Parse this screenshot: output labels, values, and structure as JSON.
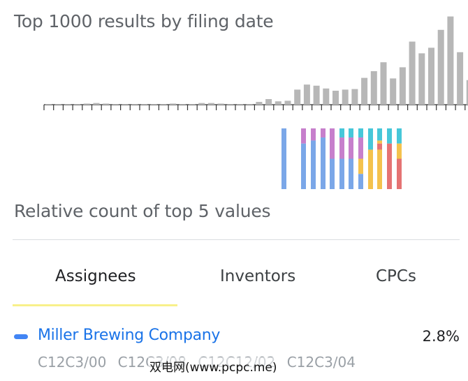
{
  "filing_chart": {
    "title": "Top 1000 results by filing date",
    "chart_data": {
      "type": "bar",
      "title": "Top 1000 results by filing date",
      "relative_heights": [
        0.5,
        0.5,
        0.5,
        0.5,
        1,
        1.5,
        1,
        0.5,
        0.5,
        0.5,
        0.5,
        0.5,
        0.5,
        1,
        0.5,
        0.5,
        1.5,
        1.5,
        1,
        0.5,
        0.5,
        0.5,
        2.5,
        5,
        3,
        3.5,
        13.5,
        18,
        17,
        14.5,
        12.5,
        13.5,
        14,
        24,
        30,
        38,
        23.5,
        33.5,
        56.5,
        46,
        51,
        67,
        79,
        47,
        22
      ],
      "bar_color": "#b7b7b7",
      "grid": false
    }
  },
  "distribution_chart": {
    "colors": {
      "blue": "#7ba7e8",
      "purple": "#c77fcc",
      "teal": "#47c7d9",
      "yellow": "#f4c24d",
      "red": "#e57373"
    },
    "columns": [
      [
        {
          "c": "blue",
          "v": 100
        }
      ],
      [
        {
          "c": "purple",
          "v": 25
        },
        {
          "c": "blue",
          "v": 75
        }
      ],
      [
        {
          "c": "purple",
          "v": 20
        },
        {
          "c": "blue",
          "v": 80
        }
      ],
      [
        {
          "c": "purple",
          "v": 15
        },
        {
          "c": "blue",
          "v": 85
        }
      ],
      [
        {
          "c": "purple",
          "v": 50
        },
        {
          "c": "blue",
          "v": 50
        }
      ],
      [
        {
          "c": "teal",
          "v": 15
        },
        {
          "c": "purple",
          "v": 35
        },
        {
          "c": "blue",
          "v": 50
        }
      ],
      [
        {
          "c": "teal",
          "v": 15
        },
        {
          "c": "purple",
          "v": 35
        },
        {
          "c": "blue",
          "v": 50
        }
      ],
      [
        {
          "c": "teal",
          "v": 15
        },
        {
          "c": "purple",
          "v": 35
        },
        {
          "c": "yellow",
          "v": 25
        },
        {
          "c": "blue",
          "v": 25
        }
      ],
      [
        {
          "c": "teal",
          "v": 35
        },
        {
          "c": "yellow",
          "v": 65
        }
      ],
      [
        {
          "c": "teal",
          "v": 20
        },
        {
          "c": "yellow",
          "v": 5
        },
        {
          "c": "red",
          "v": 10
        },
        {
          "c": "yellow",
          "v": 65
        }
      ],
      [
        {
          "c": "teal",
          "v": 25
        },
        {
          "c": "red",
          "v": 75
        }
      ],
      [
        {
          "c": "teal",
          "v": 25
        },
        {
          "c": "yellow",
          "v": 25
        },
        {
          "c": "red",
          "v": 50
        }
      ]
    ]
  },
  "relative": {
    "title": "Relative count of top 5 values",
    "tabs": [
      {
        "label": "Assignees",
        "active": true
      },
      {
        "label": "Inventors",
        "active": false
      },
      {
        "label": "CPCs",
        "active": false
      }
    ]
  },
  "top_result": {
    "name": "Miller Brewing Company",
    "percent": "2.8%",
    "swatch_color": "#4285f4",
    "cpcs": [
      "C12C3/00",
      "C12C3/08",
      "C12C12/02",
      "C12C3/04"
    ]
  },
  "watermark": "双电网(www.pcpc.me)"
}
